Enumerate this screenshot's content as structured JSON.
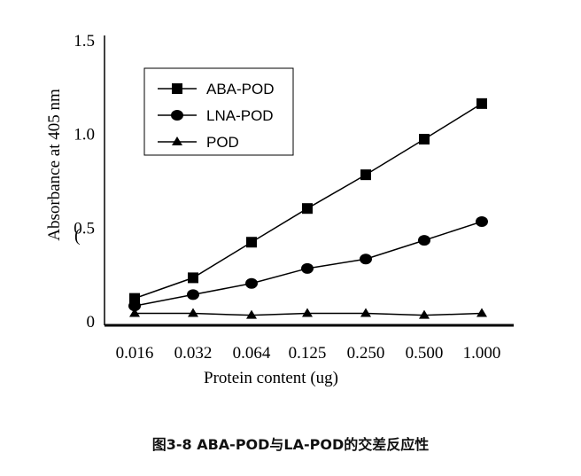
{
  "chart_data": {
    "type": "line",
    "categories": [
      "0.016",
      "0.032",
      "0.064",
      "0.125",
      "0.250",
      "0.500",
      "1.000"
    ],
    "series": [
      {
        "name": "ABA-POD",
        "marker": "square",
        "values": [
          0.12,
          0.23,
          0.42,
          0.6,
          0.78,
          0.97,
          1.16
        ]
      },
      {
        "name": "LNA-POD",
        "marker": "circle",
        "values": [
          0.08,
          0.14,
          0.2,
          0.28,
          0.33,
          0.43,
          0.53
        ]
      },
      {
        "name": "POD",
        "marker": "triangle",
        "values": [
          0.04,
          0.04,
          0.03,
          0.04,
          0.04,
          0.03,
          0.04
        ]
      }
    ],
    "yticks": [
      "0",
      "0.5",
      "1.0",
      "1.5"
    ],
    "ylim": [
      0,
      1.5
    ],
    "xlabel": "Protein content (ug)",
    "ylabel": "Absorbance at 405 nm",
    "y_stray_mark": "(",
    "legend_position": "top-left",
    "grid": false
  },
  "caption": "图3-8   ABA-POD与LA-POD的交差反应性"
}
